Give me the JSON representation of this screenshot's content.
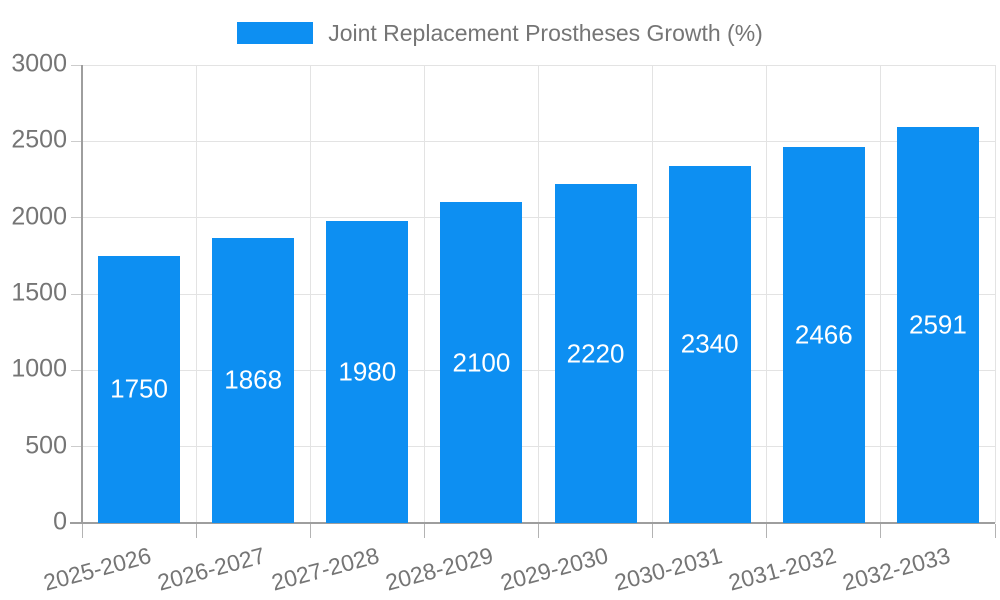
{
  "legend": {
    "label": "Joint Replacement Prostheses Growth (%)"
  },
  "colors": {
    "bar": "#0d8ff2",
    "bar_label": "#ffffff",
    "text": "#757575",
    "axis": "#9e9e9e",
    "x_tick": "#b3b3b3",
    "y_tick": "#cccccc",
    "gridline": "#e3e3e3",
    "background": "#ffffff"
  },
  "chart_data": {
    "type": "bar",
    "title": "Joint Replacement Prostheses Growth (%)",
    "categories": [
      "2025-2026",
      "2026-2027",
      "2027-2028",
      "2028-2029",
      "2029-2030",
      "2030-2031",
      "2031-2032",
      "2032-2033"
    ],
    "values": [
      1750,
      1868,
      1980,
      2100,
      2220,
      2340,
      2466,
      2591
    ],
    "series": [
      {
        "name": "Joint Replacement Prostheses Growth (%)",
        "values": [
          1750,
          1868,
          1980,
          2100,
          2220,
          2340,
          2466,
          2591
        ]
      }
    ],
    "xlabel": "",
    "ylabel": "",
    "ylim": [
      0,
      3000
    ],
    "yticks": [
      0,
      500,
      1000,
      1500,
      2000,
      2500,
      3000
    ],
    "grid": true,
    "legend_position": "top",
    "value_labels": "inside-center"
  }
}
